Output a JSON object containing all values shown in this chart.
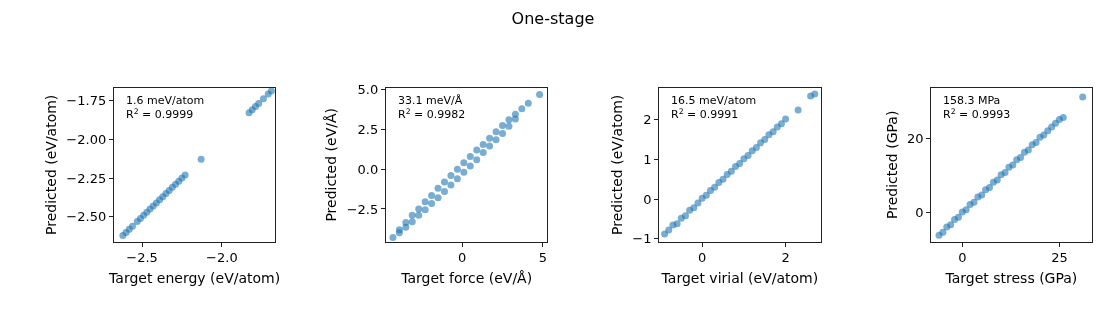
{
  "chart_data": [
    {
      "type": "other",
      "title": "One-stage"
    },
    {
      "type": "scatter",
      "xlabel": "Target energy (eV/atom)",
      "ylabel": "Predicted (eV/atom)",
      "annotations": [
        "1.6 meV/atom",
        "R$^{2}$ = 0.9999"
      ],
      "color": "#1f77b4",
      "marker": "circle",
      "xlim": [
        -2.676,
        -1.665
      ],
      "ylim": [
        -2.659,
        -1.671
      ],
      "xticks": [
        {
          "value": -2.5,
          "label": "−2.5"
        },
        {
          "value": -2.0,
          "label": "−2.0"
        }
      ],
      "yticks": [
        {
          "value": -2.5,
          "label": "−2.50"
        },
        {
          "value": -2.25,
          "label": "−2.25"
        },
        {
          "value": -2.0,
          "label": "−2.00"
        },
        {
          "value": -1.75,
          "label": "−1.75"
        }
      ],
      "x": [
        -2.62,
        -2.6,
        -2.58,
        -2.56,
        -2.53,
        -2.51,
        -2.49,
        -2.47,
        -2.45,
        -2.43,
        -2.41,
        -2.39,
        -2.37,
        -2.35,
        -2.33,
        -2.31,
        -2.29,
        -2.27,
        -2.25,
        -2.23,
        -2.13,
        -1.83,
        -1.81,
        -1.79,
        -1.77,
        -1.74,
        -1.71,
        -1.69
      ],
      "values": [
        -2.62,
        -2.6,
        -2.58,
        -2.56,
        -2.53,
        -2.51,
        -2.49,
        -2.47,
        -2.45,
        -2.43,
        -2.41,
        -2.39,
        -2.37,
        -2.35,
        -2.33,
        -2.31,
        -2.29,
        -2.27,
        -2.25,
        -2.23,
        -2.13,
        -1.83,
        -1.81,
        -1.79,
        -1.77,
        -1.74,
        -1.71,
        -1.69
      ]
    },
    {
      "type": "scatter",
      "xlabel": "Target force (eV/Å)",
      "ylabel": "Predicted (eV/Å)",
      "annotations": [
        "33.1 meV/Å",
        "R$^{2}$ = 0.9982"
      ],
      "color": "#1f77b4",
      "marker": "circle",
      "xlim": [
        -4.73,
        5.29
      ],
      "ylim": [
        -4.55,
        5.1
      ],
      "xticks": [
        0,
        5
      ],
      "yticks": [
        {
          "value": -2.5,
          "label": "−2.5"
        },
        {
          "value": 0,
          "label": "0.0"
        },
        {
          "value": 2.5,
          "label": "2.5"
        },
        {
          "value": 5,
          "label": "5.0"
        }
      ],
      "x": [
        -4.3,
        -3.9,
        -3.9,
        -3.5,
        -3.5,
        -3.1,
        -3.1,
        -2.7,
        -2.7,
        -2.3,
        -2.3,
        -1.9,
        -1.9,
        -1.5,
        -1.5,
        -1.1,
        -1.1,
        -0.7,
        -0.7,
        -0.3,
        -0.3,
        0.1,
        0.1,
        0.5,
        0.5,
        0.9,
        0.9,
        1.3,
        1.3,
        1.7,
        1.7,
        2.1,
        2.1,
        2.5,
        2.5,
        2.9,
        2.9,
        3.3,
        3.3,
        3.7,
        4.1,
        4.8
      ],
      "values": [
        -4.3,
        -3.8,
        -4.0,
        -3.35,
        -3.65,
        -2.9,
        -3.3,
        -2.5,
        -2.9,
        -2.05,
        -2.55,
        -1.65,
        -2.15,
        -1.2,
        -1.8,
        -0.8,
        -1.4,
        -0.4,
        -1.0,
        0.0,
        -0.6,
        0.4,
        -0.2,
        0.8,
        0.2,
        1.2,
        0.6,
        1.55,
        1.05,
        1.95,
        1.45,
        2.35,
        1.85,
        2.75,
        2.25,
        3.1,
        2.7,
        3.45,
        3.15,
        3.8,
        4.15,
        4.7
      ]
    },
    {
      "type": "scatter",
      "xlabel": "Target virial (eV/atom)",
      "ylabel": "Predicted (eV/atom)",
      "annotations": [
        "16.5 meV/atom",
        "R$^{2}$ = 0.9991"
      ],
      "color": "#1f77b4",
      "marker": "circle",
      "xlim": [
        -1.03,
        2.84
      ],
      "ylim": [
        -1.07,
        2.8
      ],
      "xticks": [
        0,
        2
      ],
      "yticks": [
        {
          "value": -1,
          "label": "−1"
        },
        0,
        1,
        2
      ],
      "x": [
        -0.9,
        -0.8,
        -0.7,
        -0.6,
        -0.5,
        -0.4,
        -0.3,
        -0.2,
        -0.1,
        0.0,
        0.1,
        0.2,
        0.3,
        0.4,
        0.5,
        0.6,
        0.7,
        0.8,
        0.9,
        1.0,
        1.1,
        1.2,
        1.3,
        1.4,
        1.5,
        1.6,
        1.7,
        1.8,
        1.9,
        2.0,
        2.3,
        2.6,
        2.7
      ],
      "values": [
        -0.88,
        -0.78,
        -0.65,
        -0.62,
        -0.48,
        -0.42,
        -0.28,
        -0.22,
        -0.1,
        0.02,
        0.1,
        0.22,
        0.3,
        0.42,
        0.5,
        0.62,
        0.7,
        0.82,
        0.9,
        1.02,
        1.1,
        1.22,
        1.3,
        1.42,
        1.5,
        1.62,
        1.7,
        1.82,
        1.9,
        2.02,
        2.25,
        2.6,
        2.65
      ]
    },
    {
      "type": "scatter",
      "xlabel": "Target stress (GPa)",
      "ylabel": "Predicted (GPa)",
      "annotations": [
        "158.3 MPa",
        "R$^{2}$ = 0.9993"
      ],
      "color": "#1f77b4",
      "marker": "circle",
      "xlim": [
        -8.0,
        33.3
      ],
      "ylim": [
        -7.7,
        33.4
      ],
      "xticks": [
        0,
        25
      ],
      "yticks": [
        0,
        20
      ],
      "x": [
        -6,
        -5,
        -4,
        -3,
        -2,
        -1,
        0,
        1,
        2,
        3,
        4,
        5,
        6,
        7,
        8,
        9,
        10,
        11,
        12,
        13,
        14,
        15,
        16,
        17,
        18,
        19,
        20,
        21,
        22,
        23,
        24,
        25,
        26,
        31
      ],
      "values": [
        -6,
        -5.2,
        -3.8,
        -3.2,
        -1.8,
        -1.2,
        0.2,
        0.8,
        2.2,
        2.8,
        4.2,
        4.8,
        6.2,
        6.8,
        8.2,
        8.8,
        10.2,
        10.8,
        12.2,
        12.8,
        14.2,
        14.8,
        16.2,
        16.8,
        18.2,
        18.8,
        20.2,
        20.8,
        22,
        23,
        24,
        25,
        25.5,
        31
      ]
    }
  ]
}
